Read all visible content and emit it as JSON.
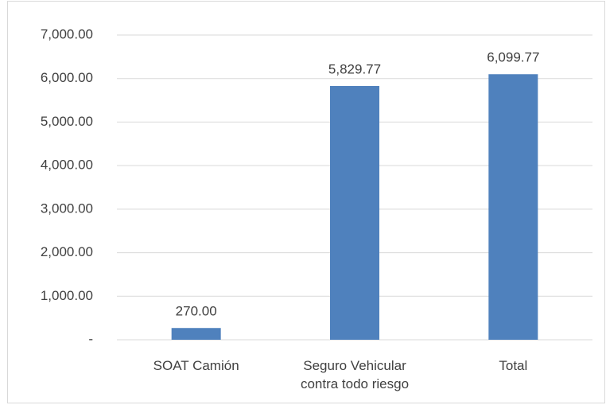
{
  "chart_data": {
    "type": "bar",
    "categories": [
      "SOAT Camión",
      "Seguro Vehicular contra todo riesgo",
      "Total"
    ],
    "values": [
      270,
      5829.77,
      6099.77
    ],
    "value_labels": [
      "270.00",
      "5,829.77",
      "6,099.77"
    ],
    "color": "#4f81bd",
    "ylim": [
      0,
      7000
    ],
    "yticks": [
      {
        "value": 0,
        "label": "-"
      },
      {
        "value": 1000,
        "label": "1,000.00"
      },
      {
        "value": 2000,
        "label": "2,000.00"
      },
      {
        "value": 3000,
        "label": "3,000.00"
      },
      {
        "value": 4000,
        "label": "4,000.00"
      },
      {
        "value": 5000,
        "label": "5,000.00"
      },
      {
        "value": 6000,
        "label": "6,000.00"
      },
      {
        "value": 7000,
        "label": "7,000.00"
      }
    ],
    "grid": true
  }
}
